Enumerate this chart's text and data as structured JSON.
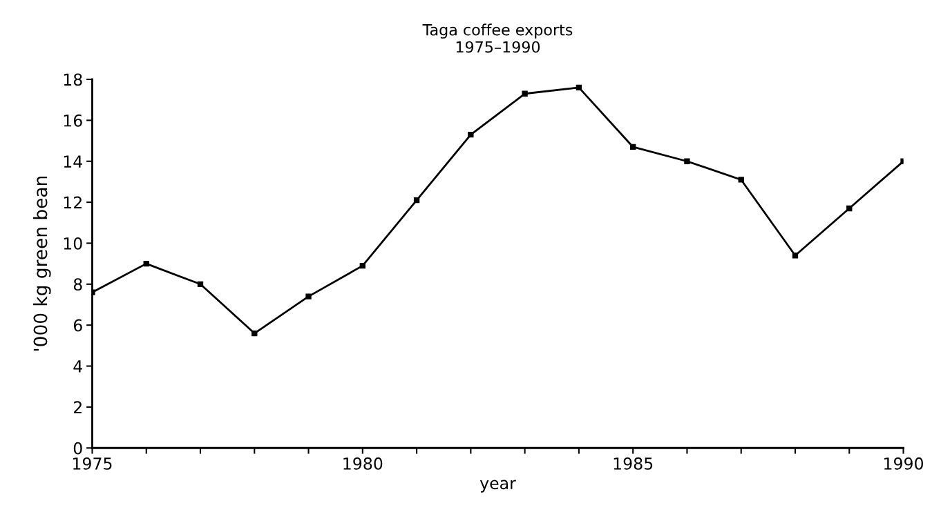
{
  "chart_data": {
    "type": "line",
    "title": "Taga coffee exports\n1975–1990",
    "xlabel": "year",
    "ylabel": "'000 kg green bean",
    "x": [
      1975,
      1976,
      1977,
      1978,
      1979,
      1980,
      1981,
      1982,
      1983,
      1984,
      1985,
      1986,
      1987,
      1988,
      1989,
      1990
    ],
    "series": [
      {
        "color": "#000000",
        "values": [
          7.6,
          9.0,
          8.0,
          5.6,
          7.4,
          8.9,
          12.1,
          15.3,
          17.3,
          17.6,
          14.7,
          14.0,
          13.1,
          9.4,
          11.7,
          14.0
        ]
      }
    ],
    "xlim": [
      1975,
      1990
    ],
    "xticks": [
      1975,
      {
        "value": 1976,
        "label": null
      },
      {
        "value": 1977,
        "label": null
      },
      {
        "value": 1978,
        "label": null
      },
      {
        "value": 1979,
        "label": null
      },
      1980,
      {
        "value": 1981,
        "label": null
      },
      {
        "value": 1982,
        "label": null
      },
      {
        "value": 1983,
        "label": null
      },
      {
        "value": 1984,
        "label": null
      },
      1985,
      {
        "value": 1986,
        "label": null
      },
      {
        "value": 1987,
        "label": null
      },
      {
        "value": 1988,
        "label": null
      },
      {
        "value": 1989,
        "label": null
      },
      1990
    ],
    "ylim": [
      0,
      18
    ],
    "yticks": [
      0,
      2,
      4,
      6,
      8,
      10,
      12,
      14,
      16,
      18
    ],
    "marker": "square",
    "line_style": "solid",
    "grid": false,
    "legend": false
  }
}
